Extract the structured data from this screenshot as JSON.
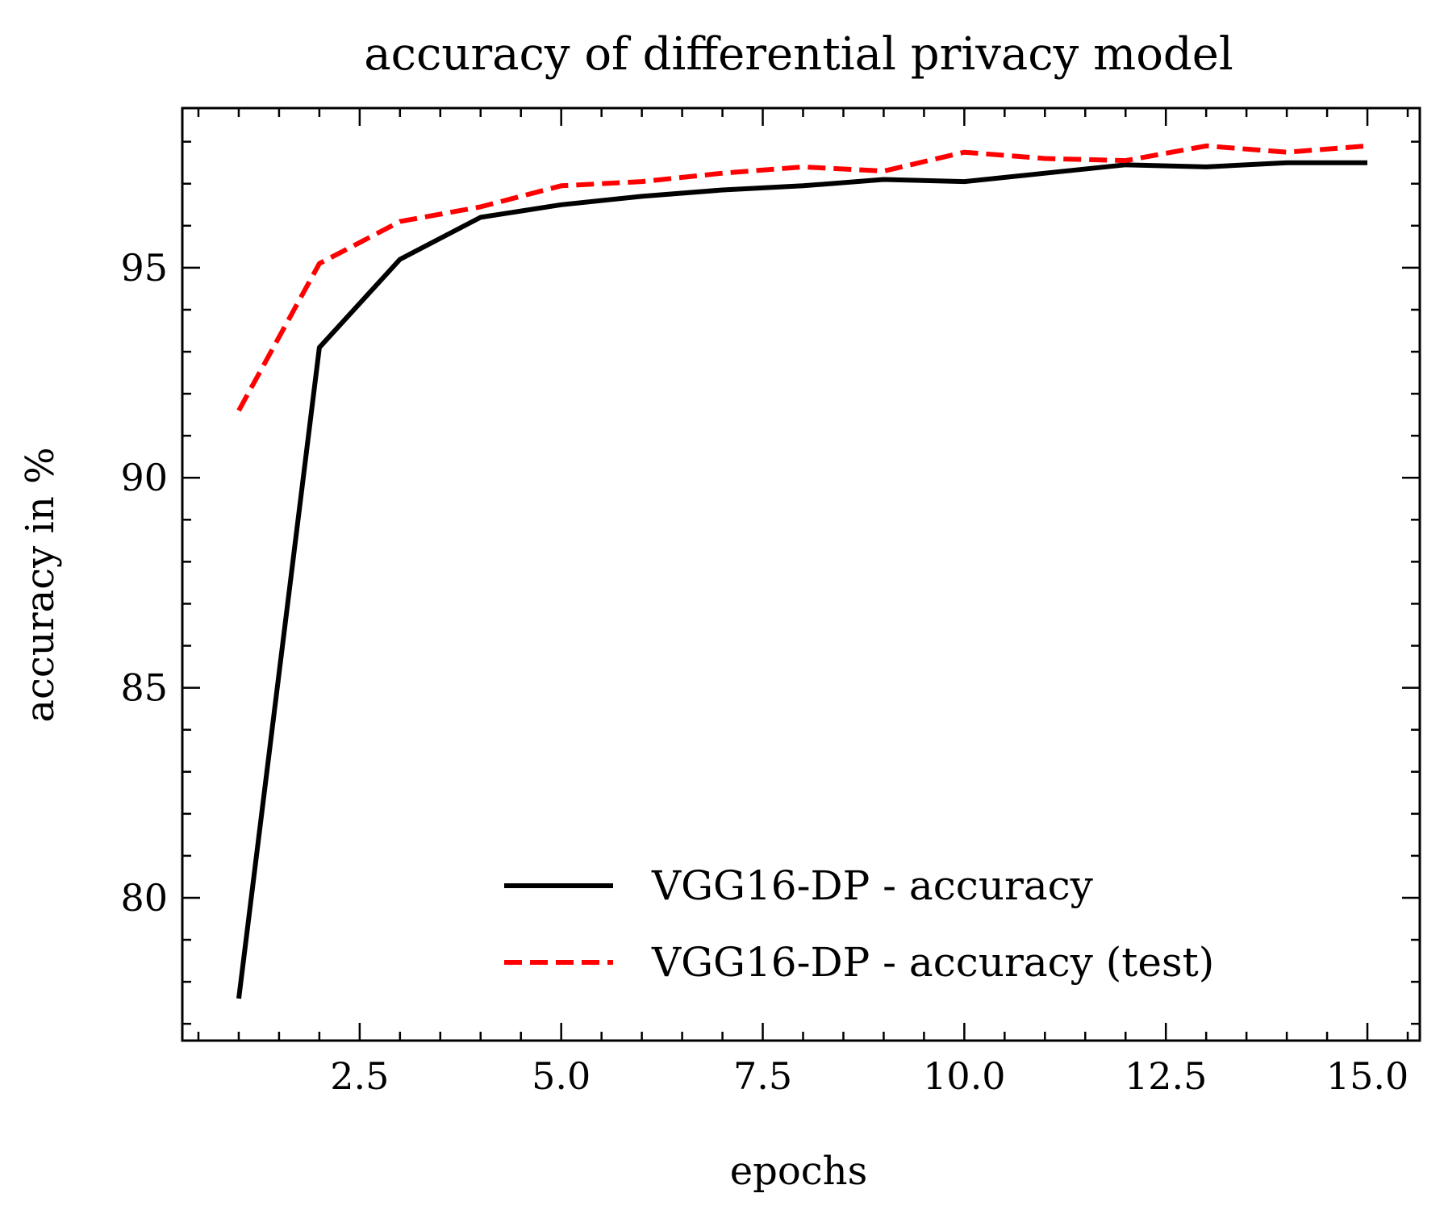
{
  "chart_data": {
    "type": "line",
    "title": "accuracy of differential privacy model",
    "xlabel": "epochs",
    "ylabel": "accuracy in %",
    "xlim": [
      0.3,
      15.65
    ],
    "ylim": [
      76.6,
      98.8
    ],
    "xticks": [
      2.5,
      5.0,
      7.5,
      10.0,
      12.5,
      15.0
    ],
    "xtick_labels": [
      "2.5",
      "5.0",
      "7.5",
      "10.0",
      "12.5",
      "15.0"
    ],
    "yticks": [
      80,
      85,
      90,
      95
    ],
    "ytick_labels": [
      "80",
      "85",
      "90",
      "95"
    ],
    "x_minor_step": 0.5,
    "y_minor_step": 1,
    "grid": false,
    "legend_position": "lower-right",
    "x": [
      1,
      2,
      3,
      4,
      5,
      6,
      7,
      8,
      9,
      10,
      11,
      12,
      13,
      14,
      15
    ],
    "series": [
      {
        "name": "VGG16-DP - accuracy",
        "color": "#000000",
        "style": "solid",
        "values": [
          77.6,
          93.1,
          95.2,
          96.2,
          96.5,
          96.7,
          96.85,
          96.95,
          97.1,
          97.05,
          97.25,
          97.45,
          97.4,
          97.5,
          97.5
        ]
      },
      {
        "name": "VGG16-DP - accuracy (test)",
        "color": "#ff0000",
        "style": "dashed",
        "values": [
          91.6,
          95.1,
          96.1,
          96.45,
          96.95,
          97.05,
          97.25,
          97.4,
          97.3,
          97.75,
          97.6,
          97.55,
          97.9,
          97.75,
          97.9
        ]
      }
    ]
  }
}
